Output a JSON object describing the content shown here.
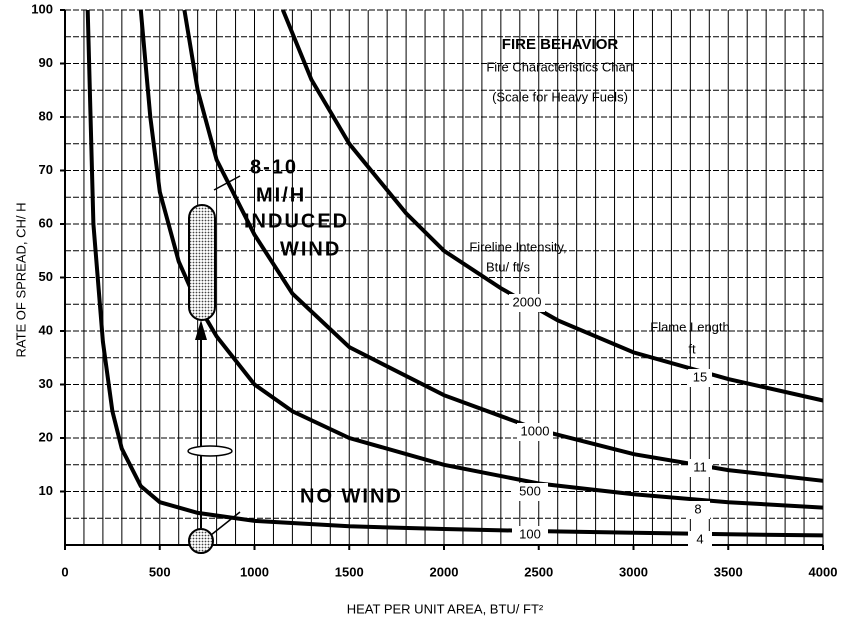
{
  "chart_data": {
    "type": "line",
    "title": "FIRE BEHAVIOR",
    "subtitle": "Fire Characteristics Chart",
    "note": "(Scale for Heavy Fuels)",
    "xlabel": "HEAT PER UNIT AREA, BTU/ FT²",
    "ylabel": "RATE OF SPREAD, CH/ H",
    "xlim": [
      0,
      4000
    ],
    "ylim": [
      0,
      100
    ],
    "xticks": [
      0,
      500,
      1000,
      1500,
      2000,
      2500,
      3000,
      3500,
      4000
    ],
    "yticks": [
      10,
      20,
      30,
      40,
      50,
      60,
      70,
      80,
      90,
      100
    ],
    "xgrid": [
      100,
      200,
      300,
      400,
      500,
      600,
      700,
      800,
      900,
      1000,
      1100,
      1200,
      1300,
      1400,
      1500,
      1600,
      1700,
      1800,
      1900,
      2000,
      2100,
      2200,
      2300,
      2400,
      2500,
      2600,
      2700,
      2800,
      2900,
      3000,
      3100,
      3200,
      3300,
      3400,
      3500,
      3600,
      3700,
      3800,
      3900,
      4000
    ],
    "ygrid": [
      5,
      10,
      15,
      20,
      25,
      30,
      35,
      40,
      45,
      50,
      55,
      60,
      65,
      70,
      75,
      80,
      85,
      90,
      95,
      100
    ],
    "grid": true,
    "series_title": [
      "Fireline Intensity,",
      "Btu/ ft/s"
    ],
    "series": [
      {
        "name": "100",
        "color": "#000000",
        "x": [
          120,
          150,
          200,
          250,
          300,
          400,
          500,
          700,
          1000,
          1500,
          2000,
          2500,
          3000,
          3500,
          4000
        ],
        "values": [
          100,
          60,
          38,
          25,
          18,
          11,
          8,
          6,
          4.5,
          3.5,
          3,
          2.6,
          2.3,
          2,
          1.8
        ]
      },
      {
        "name": "500",
        "color": "#000000",
        "x": [
          400,
          450,
          500,
          600,
          700,
          800,
          1000,
          1200,
          1500,
          2000,
          2500,
          3000,
          3500,
          4000
        ],
        "values": [
          100,
          80,
          66,
          53,
          45,
          39,
          30,
          25,
          20,
          15,
          11.5,
          9.5,
          8,
          7
        ]
      },
      {
        "name": "1000",
        "color": "#000000",
        "x": [
          630,
          700,
          800,
          1000,
          1200,
          1500,
          2000,
          2500,
          3000,
          3500,
          4000
        ],
        "values": [
          100,
          85,
          72,
          58,
          47,
          37,
          28,
          21.5,
          17,
          14,
          12
        ]
      },
      {
        "name": "2000",
        "color": "#000000",
        "x": [
          1150,
          1300,
          1500,
          1800,
          2000,
          2300,
          2600,
          3000,
          3500,
          4000
        ],
        "values": [
          100,
          87,
          75,
          62,
          55,
          48,
          42,
          36,
          31,
          27
        ]
      }
    ],
    "flame_length_title": "Flame Length",
    "flame_length_unit": "ft",
    "flame_lengths": [
      "4",
      "8",
      "11",
      "15"
    ],
    "annotations": {
      "induced_wind": [
        "8-10",
        "MI/H",
        "INDUCED",
        "WIND"
      ],
      "no_wind": "NO WIND"
    }
  }
}
